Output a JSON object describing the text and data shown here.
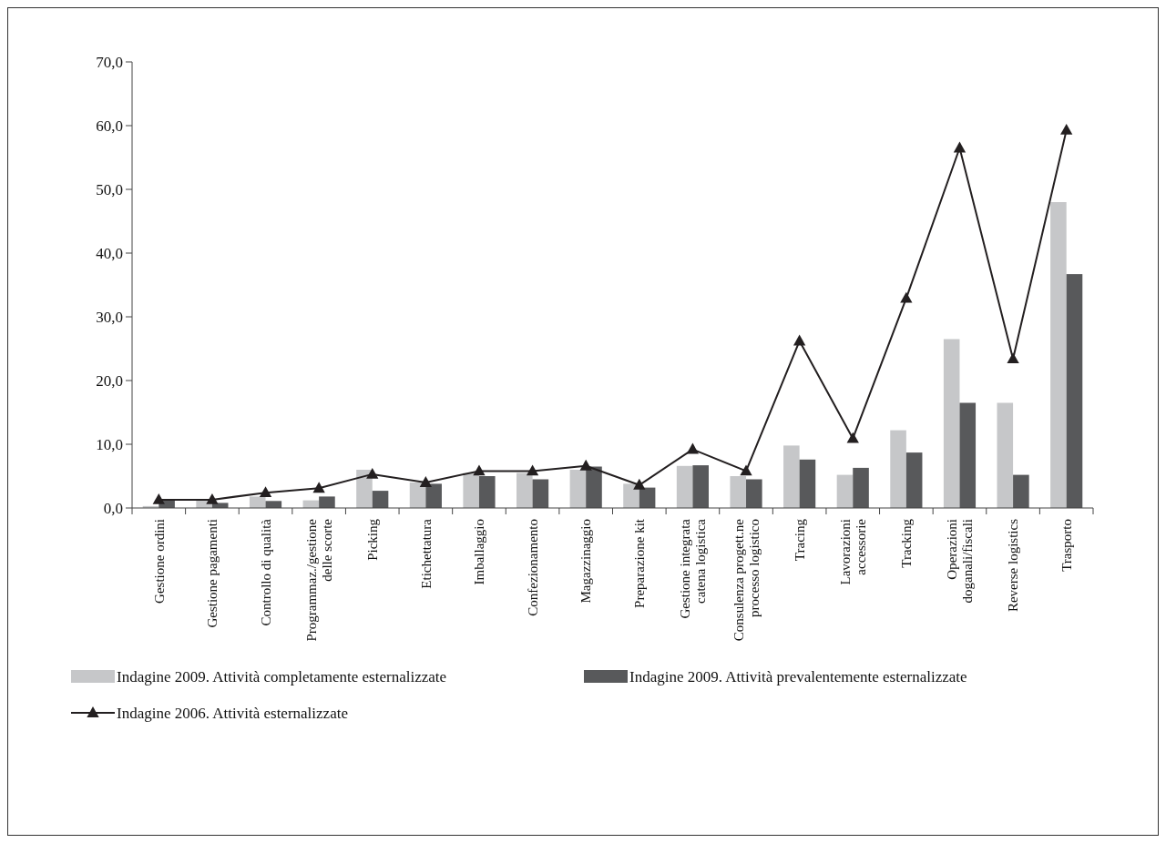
{
  "chart_data": {
    "type": "bar",
    "categories": [
      "Gestione ordini",
      "Gestione pagamenti",
      "Controllo di qualità",
      "Programmaz./gestione\ndelle scorte",
      "Picking",
      "Etichettatura",
      "Imballaggio",
      "Confezionamento",
      "Magazzinaggio",
      "Preparazione kit",
      "Gestione integrata\ncatena logistica",
      "Consulenza progett.ne\nprocesso logistico",
      "Tracing",
      "Lavorazioni\naccessorie",
      "Tracking",
      "Operazioni\ndoganali/fiscali",
      "Reverse logistics",
      "Trasporto"
    ],
    "series": [
      {
        "name": "Indagine 2009. Attività completamente esternalizzate",
        "color": "#c6c7c9",
        "values": [
          0.3,
          1.2,
          1.8,
          1.2,
          6.0,
          4.0,
          5.5,
          5.5,
          6.0,
          3.8,
          6.6,
          5.0,
          9.8,
          5.2,
          12.2,
          26.5,
          16.5,
          48.0
        ]
      },
      {
        "name": "Indagine 2009. Attività prevalentemente esternalizzate",
        "color": "#58595b",
        "values": [
          1.2,
          0.8,
          1.1,
          1.8,
          2.7,
          3.8,
          5.0,
          4.5,
          6.5,
          3.2,
          6.7,
          4.5,
          7.6,
          6.3,
          8.7,
          16.5,
          5.2,
          36.7
        ]
      },
      {
        "name": "Indagine 2006. Attività esternalizzate",
        "type": "line",
        "color": "#231f20",
        "marker": "triangle",
        "values": [
          1.3,
          1.3,
          2.4,
          3.1,
          5.3,
          4.0,
          5.8,
          5.8,
          6.6,
          3.6,
          9.2,
          5.8,
          26.2,
          10.9,
          32.9,
          56.5,
          23.4,
          59.3
        ]
      }
    ],
    "ylim": [
      0,
      70
    ],
    "yticks": [
      {
        "value": 0,
        "label": "0,0"
      },
      {
        "value": 10,
        "label": "10,0"
      },
      {
        "value": 20,
        "label": "20,0"
      },
      {
        "value": 30,
        "label": "30,0"
      },
      {
        "value": 40,
        "label": "40,0"
      },
      {
        "value": 50,
        "label": "50,0"
      },
      {
        "value": 60,
        "label": "60,0"
      },
      {
        "value": 70,
        "label": "70,0"
      }
    ],
    "grid": false,
    "legend": "bottom"
  }
}
